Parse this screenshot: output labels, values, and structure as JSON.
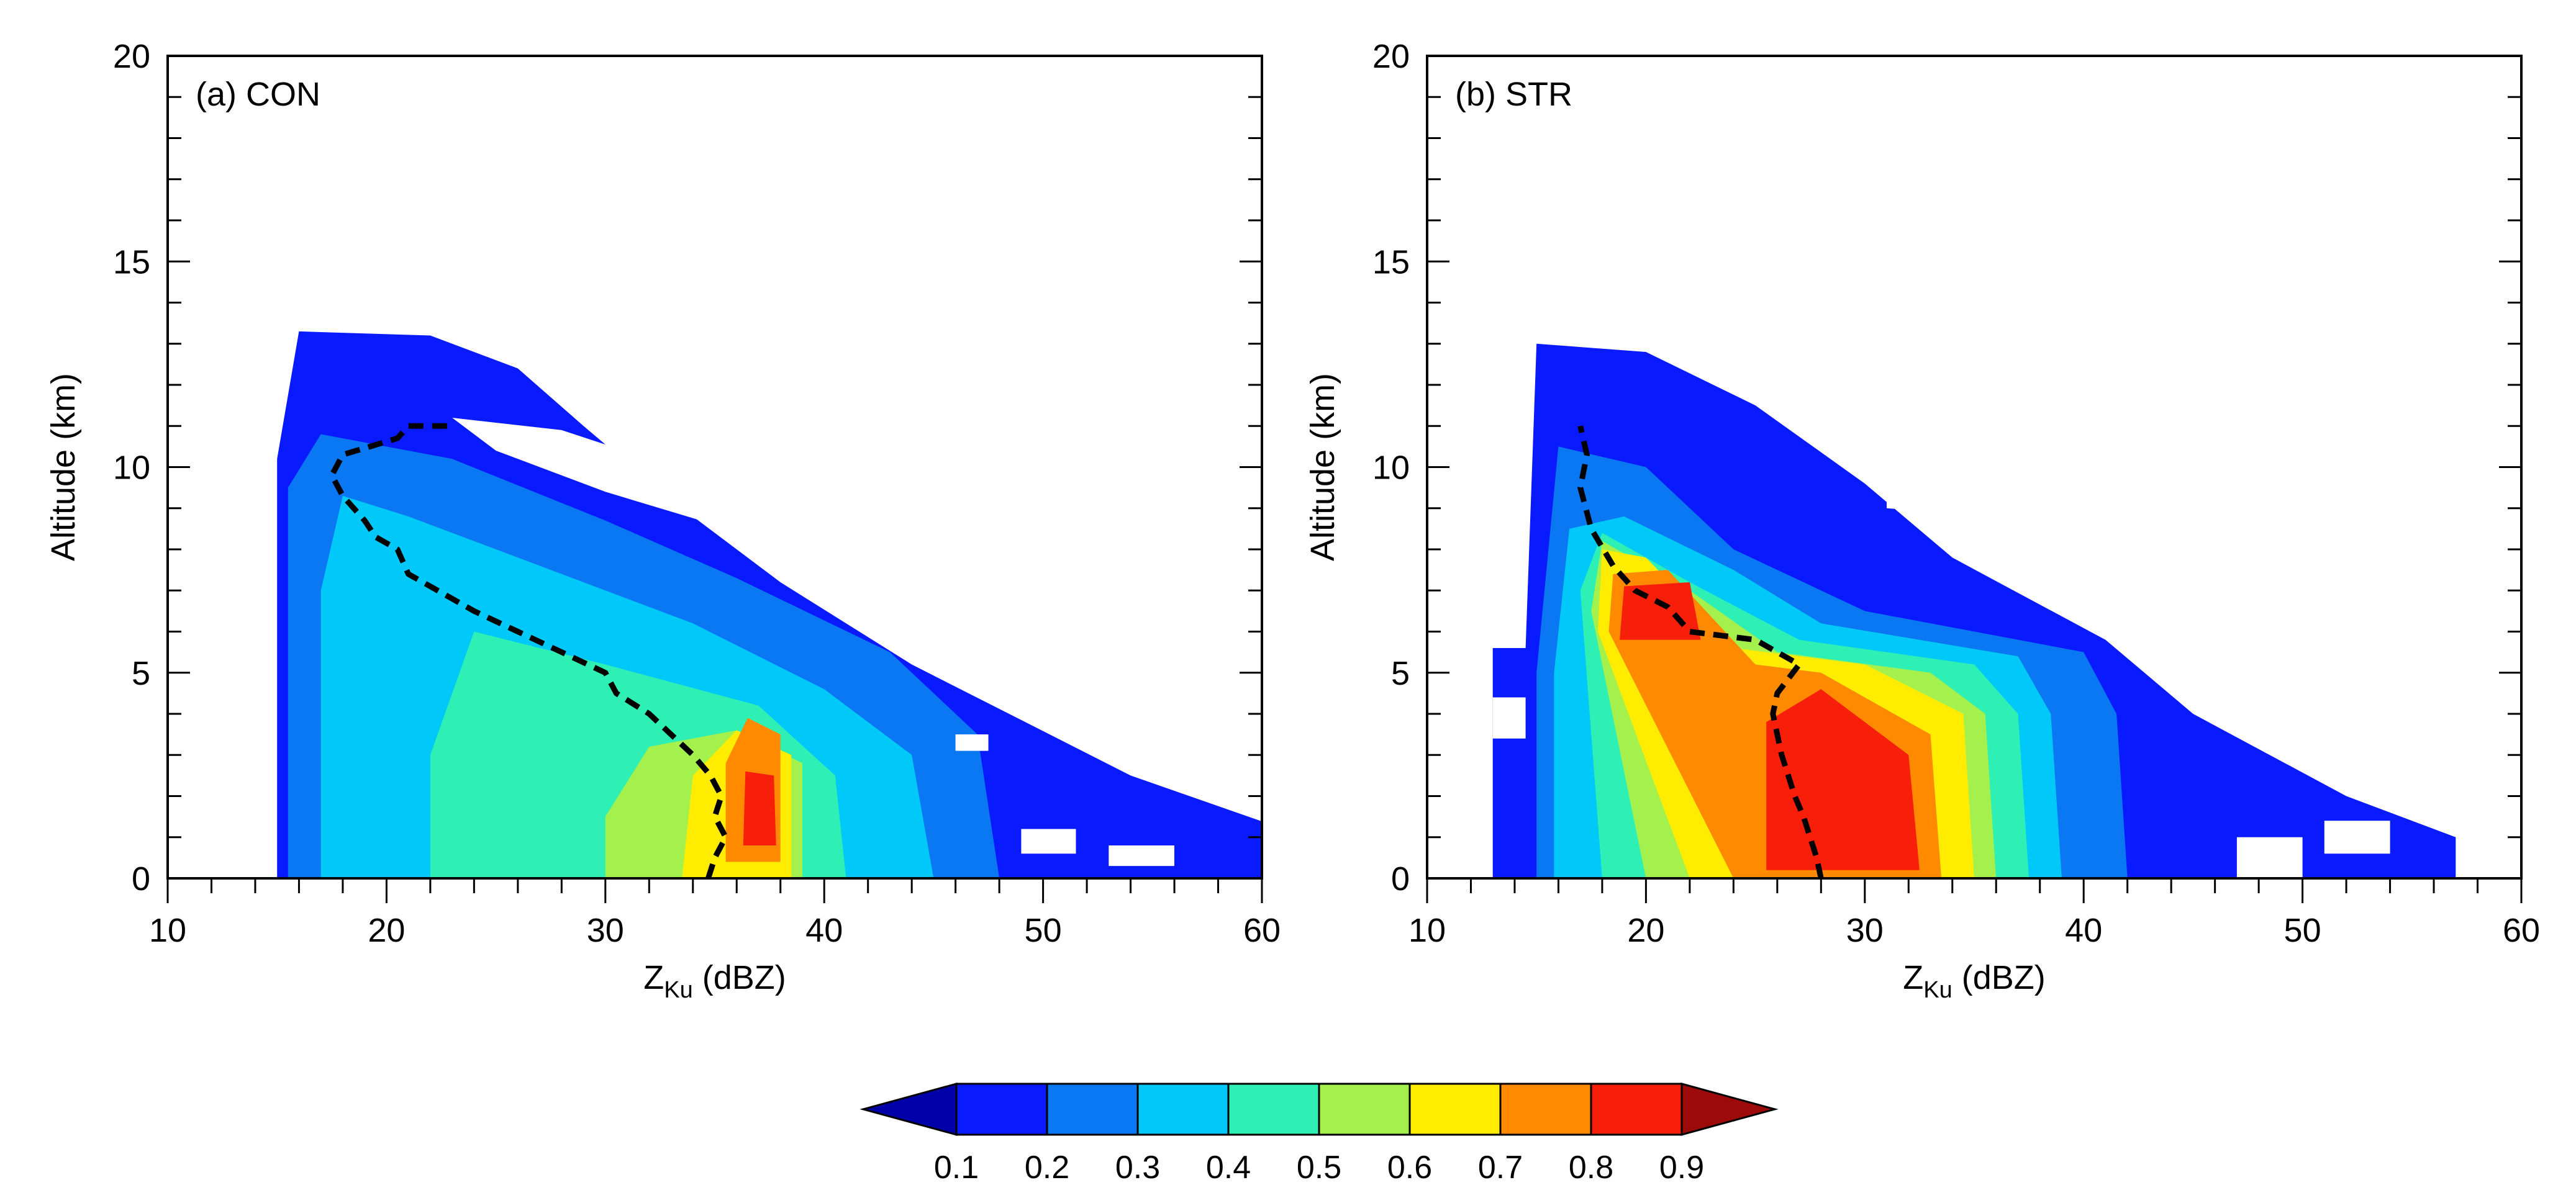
{
  "chart_data": [
    {
      "type": "heatmap",
      "panel_label": "(a) CON",
      "xlabel_base": "Z",
      "xlabel_sub": "Ku",
      "xlabel_unit": "(dBZ)",
      "ylabel": "Altitude (km)",
      "xlim": [
        10,
        60
      ],
      "ylim": [
        0,
        20
      ],
      "xticks": [
        10,
        20,
        30,
        40,
        50,
        60
      ],
      "yticks": [
        0,
        5,
        10,
        15,
        20
      ],
      "regions": [
        {
          "level": 0.1,
          "poly": [
            [
              15,
              0
            ],
            [
              61,
              0
            ],
            [
              61,
              1.2
            ],
            [
              54,
              2.5
            ],
            [
              44,
              5.2
            ],
            [
              38,
              7.2
            ],
            [
              33,
              9.2
            ],
            [
              29,
              11
            ],
            [
              26,
              12.4
            ],
            [
              22,
              13.2
            ],
            [
              16,
              13.3
            ],
            [
              15,
              10.2
            ]
          ]
        },
        {
          "level": 0.2,
          "poly": [
            [
              15.5,
              0
            ],
            [
              48,
              0
            ],
            [
              47,
              3.5
            ],
            [
              43,
              5.5
            ],
            [
              36,
              7.3
            ],
            [
              30,
              8.7
            ],
            [
              23,
              10.2
            ],
            [
              17,
              10.8
            ],
            [
              15.5,
              9.5
            ]
          ]
        },
        {
          "level": 0.3,
          "poly": [
            [
              17,
              0
            ],
            [
              45,
              0
            ],
            [
              44,
              3
            ],
            [
              40,
              4.6
            ],
            [
              34,
              6.2
            ],
            [
              27,
              7.6
            ],
            [
              21,
              8.8
            ],
            [
              18,
              9.3
            ],
            [
              17,
              7
            ]
          ]
        },
        {
          "level": 0.4,
          "poly": [
            [
              22,
              0
            ],
            [
              41,
              0
            ],
            [
              40.5,
              2.5
            ],
            [
              37,
              4.2
            ],
            [
              30,
              5.2
            ],
            [
              24,
              6
            ],
            [
              22,
              3
            ]
          ]
        },
        {
          "level": 0.5,
          "poly": [
            [
              30,
              0
            ],
            [
              39,
              0
            ],
            [
              39,
              2.8
            ],
            [
              36,
              3.6
            ],
            [
              32,
              3.2
            ],
            [
              30,
              1.5
            ]
          ]
        },
        {
          "level": 0.6,
          "poly": [
            [
              33.5,
              0
            ],
            [
              38.5,
              0
            ],
            [
              38.5,
              3
            ],
            [
              36,
              3.6
            ],
            [
              34,
              2.5
            ]
          ]
        },
        {
          "level": 0.7,
          "poly": [
            [
              35.5,
              0.4
            ],
            [
              38,
              0.4
            ],
            [
              38,
              3.5
            ],
            [
              36.5,
              3.9
            ],
            [
              35.5,
              2.8
            ]
          ]
        },
        {
          "level": 0.8,
          "poly": [
            [
              36.3,
              0.8
            ],
            [
              37.8,
              0.8
            ],
            [
              37.7,
              2.5
            ],
            [
              36.4,
              2.6
            ]
          ]
        }
      ],
      "mean_profile": {
        "x": [
          34.7,
          35,
          35.5,
          35,
          35.3,
          34.8,
          34,
          33,
          32,
          30.5,
          30,
          28,
          26,
          24,
          21,
          20.5,
          19.5,
          19,
          18,
          17.5,
          18,
          20.5,
          21,
          23
        ],
        "y": [
          0,
          0.5,
          1,
          1.5,
          2,
          2.5,
          3,
          3.5,
          4,
          4.5,
          5,
          5.5,
          6,
          6.5,
          7.4,
          8,
          8.3,
          8.7,
          9.3,
          9.8,
          10.3,
          10.7,
          11,
          11
        ]
      },
      "gaps": [
        {
          "poly": [
            [
              23,
              11.2
            ],
            [
              28,
              10.9
            ],
            [
              32,
              10.2
            ],
            [
              36,
              9.4
            ],
            [
              35,
              8.6
            ],
            [
              30,
              9.4
            ],
            [
              25,
              10.4
            ]
          ]
        },
        {
          "poly": [
            [
              49,
              0.6
            ],
            [
              51.5,
              0.6
            ],
            [
              51.5,
              1.2
            ],
            [
              49,
              1.2
            ]
          ]
        },
        {
          "poly": [
            [
              53,
              0.3
            ],
            [
              56,
              0.3
            ],
            [
              56,
              0.8
            ],
            [
              53,
              0.8
            ]
          ]
        },
        {
          "poly": [
            [
              46,
              3.1
            ],
            [
              47.5,
              3.1
            ],
            [
              47.5,
              3.5
            ],
            [
              46,
              3.5
            ]
          ]
        }
      ]
    },
    {
      "type": "heatmap",
      "panel_label": "(b) STR",
      "xlabel_base": "Z",
      "xlabel_sub": "Ku",
      "xlabel_unit": "(dBZ)",
      "ylabel": "Altitude (km)",
      "xlim": [
        10,
        60
      ],
      "ylim": [
        0,
        20
      ],
      "xticks": [
        10,
        20,
        30,
        40,
        50,
        60
      ],
      "yticks": [
        0,
        5,
        10,
        15,
        20
      ],
      "regions": [
        {
          "level": 0.1,
          "poly": [
            [
              13,
              0
            ],
            [
              57,
              0
            ],
            [
              57,
              1
            ],
            [
              52,
              2
            ],
            [
              45,
              4
            ],
            [
              41,
              5.8
            ],
            [
              34,
              7.8
            ],
            [
              30,
              9.6
            ],
            [
              25,
              11.5
            ],
            [
              20,
              12.8
            ],
            [
              15,
              13
            ],
            [
              14.5,
              5.6
            ],
            [
              13,
              5.6
            ]
          ]
        },
        {
          "level": 0.2,
          "poly": [
            [
              15,
              0
            ],
            [
              42,
              0
            ],
            [
              41.5,
              4
            ],
            [
              40,
              5.5
            ],
            [
              30,
              6.5
            ],
            [
              24,
              8
            ],
            [
              20,
              10
            ],
            [
              16,
              10.5
            ],
            [
              15,
              5
            ]
          ]
        },
        {
          "level": 0.3,
          "poly": [
            [
              15.8,
              0
            ],
            [
              39,
              0
            ],
            [
              38.5,
              4
            ],
            [
              37,
              5.4
            ],
            [
              28,
              6.2
            ],
            [
              24,
              7.5
            ],
            [
              19,
              8.8
            ],
            [
              16.5,
              8.5
            ],
            [
              15.8,
              5
            ]
          ]
        },
        {
          "level": 0.4,
          "poly": [
            [
              18,
              0
            ],
            [
              37.5,
              0
            ],
            [
              37,
              4
            ],
            [
              35,
              5.2
            ],
            [
              27,
              5.8
            ],
            [
              22,
              7.2
            ],
            [
              18,
              8.4
            ],
            [
              17,
              7
            ]
          ]
        },
        {
          "level": 0.5,
          "poly": [
            [
              20,
              0
            ],
            [
              36,
              0
            ],
            [
              35.5,
              4
            ],
            [
              33,
              5
            ],
            [
              26,
              5.5
            ],
            [
              22,
              7
            ],
            [
              18,
              8.2
            ],
            [
              17.5,
              6.5
            ]
          ]
        },
        {
          "level": 0.6,
          "poly": [
            [
              22,
              0
            ],
            [
              35,
              0
            ],
            [
              34.5,
              4
            ],
            [
              30,
              5.2
            ],
            [
              24,
              5.6
            ],
            [
              20,
              7.8
            ],
            [
              18,
              8
            ],
            [
              17.8,
              6
            ]
          ]
        },
        {
          "level": 0.7,
          "poly": [
            [
              24,
              0
            ],
            [
              33.5,
              0
            ],
            [
              33,
              3.5
            ],
            [
              28,
              5
            ],
            [
              25,
              5.2
            ],
            [
              21,
              7.5
            ],
            [
              18.5,
              7.4
            ],
            [
              18.3,
              6
            ]
          ]
        },
        {
          "level": 0.8,
          "poly": [
            [
              25.5,
              0.2
            ],
            [
              32.5,
              0.2
            ],
            [
              32,
              3
            ],
            [
              28,
              4.6
            ],
            [
              25.5,
              3.8
            ]
          ]
        },
        {
          "level": 0.8,
          "poly": [
            [
              18.8,
              5.8
            ],
            [
              22.5,
              5.8
            ],
            [
              22,
              7.2
            ],
            [
              19,
              7.1
            ]
          ]
        }
      ],
      "mean_profile": {
        "x": [
          28,
          27.8,
          27.5,
          27.2,
          26.8,
          26.5,
          26.2,
          26,
          25.8,
          26,
          27,
          25,
          22,
          21,
          19.5,
          18.5,
          17.5,
          17,
          17.3,
          17
        ],
        "y": [
          0,
          0.5,
          1,
          1.5,
          2,
          2.5,
          3,
          3.5,
          4,
          4.5,
          5.2,
          5.8,
          6,
          6.6,
          7,
          7.6,
          8.5,
          9.5,
          10.3,
          11
        ]
      },
      "gaps": [
        {
          "poly": [
            [
              31,
              9.6
            ],
            [
              37,
              9.3
            ],
            [
              43,
              8.6
            ],
            [
              42,
              8.3
            ],
            [
              36,
              8.8
            ],
            [
              31,
              9
            ]
          ]
        },
        {
          "poly": [
            [
              47,
              0
            ],
            [
              50,
              0
            ],
            [
              50,
              1
            ],
            [
              47,
              1
            ]
          ]
        },
        {
          "poly": [
            [
              51,
              0.6
            ],
            [
              54,
              0.6
            ],
            [
              54,
              1.4
            ],
            [
              51,
              1.4
            ]
          ]
        },
        {
          "poly": [
            [
              13,
              4.4
            ],
            [
              14.5,
              4.4
            ],
            [
              14.5,
              3.4
            ],
            [
              13,
              3.4
            ]
          ]
        }
      ]
    }
  ],
  "colorbar": {
    "levels": [
      0.1,
      0.2,
      0.3,
      0.4,
      0.5,
      0.6,
      0.7,
      0.8,
      0.9
    ],
    "labels": [
      "0.1",
      "0.2",
      "0.3",
      "0.4",
      "0.5",
      "0.6",
      "0.7",
      "0.8",
      "0.9"
    ],
    "colors": [
      "#0000a8",
      "#0a1aff",
      "#0a78f2",
      "#00c8f8",
      "#2ff0b4",
      "#a4f04c",
      "#ffec00",
      "#ff8a00",
      "#f71e0a",
      "#9c0a0a"
    ]
  }
}
